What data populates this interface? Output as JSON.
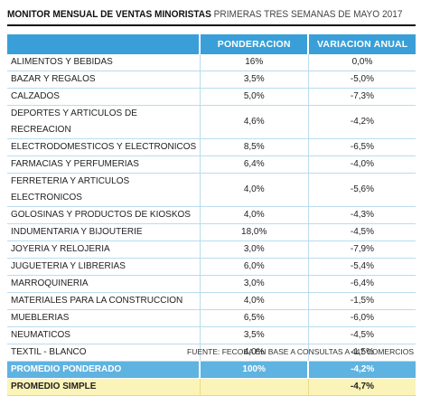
{
  "header": {
    "title_bold": "MONITOR MENSUAL DE VENTAS MINORISTAS",
    "title_light": "PRIMERAS TRES SEMANAS DE MAYO 2017"
  },
  "table": {
    "columns": [
      "",
      "PONDERACION",
      "VARIACION ANUAL"
    ],
    "rows": [
      {
        "name": "ALIMENTOS Y BEBIDAS",
        "pond": "16%",
        "var": "0,0%"
      },
      {
        "name": "BAZAR Y REGALOS",
        "pond": "3,5%",
        "var": "-5,0%"
      },
      {
        "name": "CALZADOS",
        "pond": "5,0%",
        "var": "-7,3%"
      },
      {
        "name": "DEPORTES Y ARTICULOS DE RECREACION",
        "pond": "4,6%",
        "var": "-4,2%"
      },
      {
        "name": "ELECTRODOMESTICOS Y ELECTRONICOS",
        "pond": "8,5%",
        "var": "-6,5%"
      },
      {
        "name": "FARMACIAS Y PERFUMERIAS",
        "pond": "6,4%",
        "var": "-4,0%"
      },
      {
        "name": "FERRETERIA Y ARTICULOS ELECTRONICOS",
        "pond": "4,0%",
        "var": "-5,6%"
      },
      {
        "name": "GOLOSINAS Y PRODUCTOS DE KIOSKOS",
        "pond": "4,0%",
        "var": "-4,3%"
      },
      {
        "name": "INDUMENTARIA Y BIJOUTERIE",
        "pond": "18,0%",
        "var": "-4,5%"
      },
      {
        "name": "JOYERIA Y RELOJERIA",
        "pond": "3,0%",
        "var": "-7,9%"
      },
      {
        "name": "JUGUETERIA Y LIBRERIAS",
        "pond": "6,0%",
        "var": "-5,4%"
      },
      {
        "name": "MARROQUINERIA",
        "pond": "3,0%",
        "var": "-6,4%"
      },
      {
        "name": "MATERIALES PARA LA CONSTRUCCION",
        "pond": "4,0%",
        "var": "-1,5%"
      },
      {
        "name": "MUEBLERIAS",
        "pond": "6,5%",
        "var": "-6,0%"
      },
      {
        "name": "NEUMATICOS",
        "pond": "3,5%",
        "var": "-4,5%"
      },
      {
        "name": "TEXTIL - BLANCO",
        "pond": "4,0%",
        "var": "-1,5%"
      }
    ],
    "promedio_ponderado": {
      "name": "PROMEDIO PONDERADO",
      "pond": "100%",
      "var": "-4,2%"
    },
    "promedio_simple": {
      "name": "PROMEDIO SIMPLE",
      "pond": "",
      "var": "-4,7%"
    }
  },
  "footer": {
    "source": "FUENTE: FECOBA EN BASE A CONSULTAS A 447 COMERCIOS"
  },
  "colors": {
    "header_blue": "#3a9fd8",
    "ponderado_blue": "#5fb3e0",
    "simple_yellow": "#fbf4b8"
  }
}
